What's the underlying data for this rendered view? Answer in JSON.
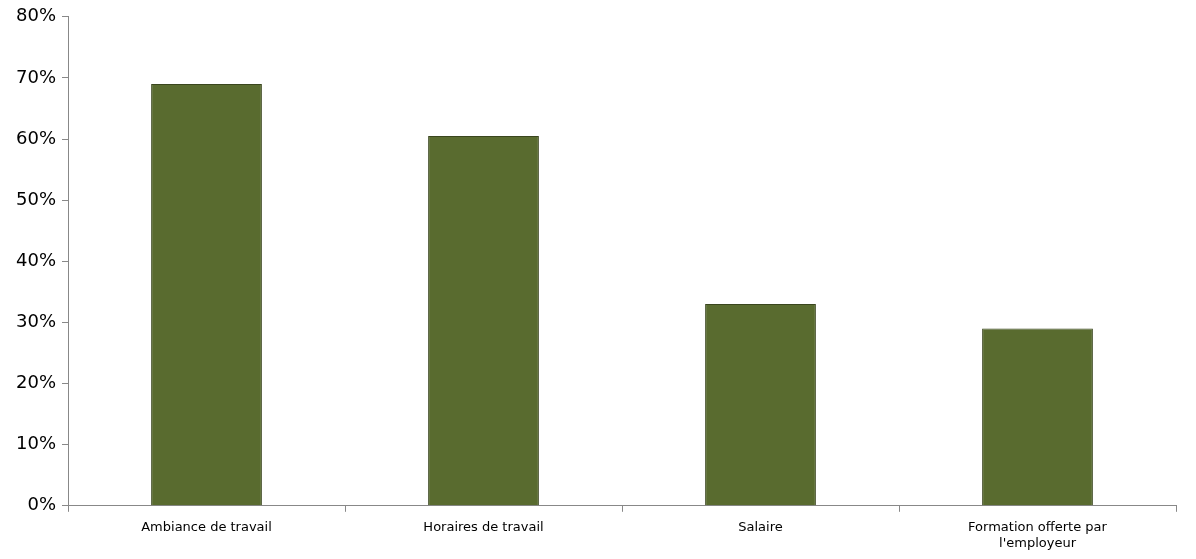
{
  "chart_data": {
    "type": "bar",
    "categories": [
      "Ambiance de travail",
      "Horaires de travail",
      "Salaire",
      "Formation offerte par l'employeur"
    ],
    "values": [
      69,
      60.5,
      33,
      29
    ],
    "color": "#596b2f",
    "ylim": [
      0,
      80
    ],
    "yticks": [
      {
        "value": 0,
        "label": "0%"
      },
      {
        "value": 10,
        "label": "10%"
      },
      {
        "value": 20,
        "label": "20%"
      },
      {
        "value": 30,
        "label": "30%"
      },
      {
        "value": 40,
        "label": "40%"
      },
      {
        "value": 50,
        "label": "50%"
      },
      {
        "value": 60,
        "label": "60%"
      },
      {
        "value": 70,
        "label": "70%"
      },
      {
        "value": 80,
        "label": "80%"
      }
    ],
    "grid": false
  }
}
